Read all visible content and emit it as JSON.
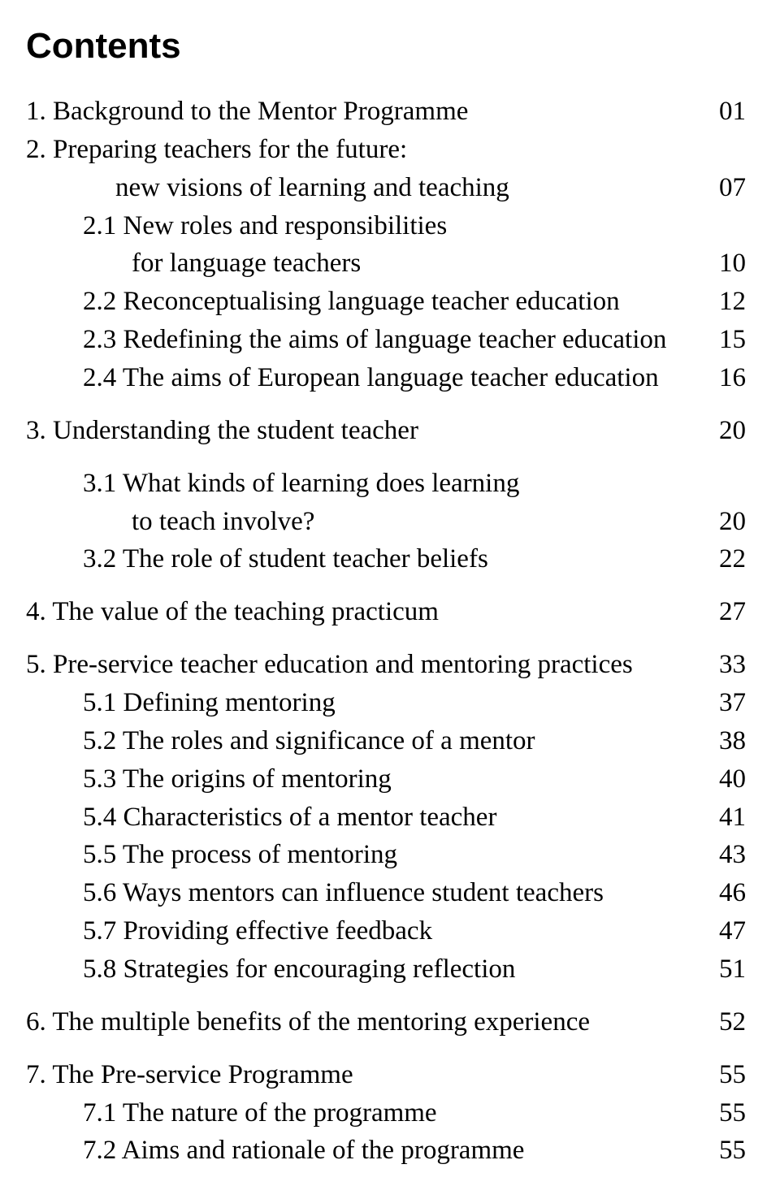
{
  "title": "Contents",
  "entries": [
    {
      "label": "1. Background to the Mentor Programme",
      "page": "01",
      "indent": 0,
      "gap": false
    },
    {
      "label": "2. Preparing teachers for the future:",
      "page": "",
      "indent": 0,
      "gap": false
    },
    {
      "label": "new visions of learning and teaching",
      "page": "07",
      "indent": "cont",
      "gap": false
    },
    {
      "label": "2.1 New roles and responsibilities",
      "page": "",
      "indent": 1,
      "gap": false
    },
    {
      "label": "for language teachers",
      "page": "10",
      "indent": 2,
      "gap": false
    },
    {
      "label": "2.2 Reconceptualising language teacher education",
      "page": "12",
      "indent": 1,
      "gap": false
    },
    {
      "label": "2.3 Redefining the aims of language teacher education",
      "page": "15",
      "indent": 1,
      "gap": false
    },
    {
      "label": "2.4 The aims of European language teacher education",
      "page": "16",
      "indent": 1,
      "gap": false
    },
    {
      "label": "3. Understanding the student teacher",
      "page": "20",
      "indent": 0,
      "gap": true
    },
    {
      "label": "3.1 What kinds of learning does learning",
      "page": "",
      "indent": 1,
      "gap": true
    },
    {
      "label": "to teach involve?",
      "page": "20",
      "indent": 2,
      "gap": false
    },
    {
      "label": "3.2 The role of student teacher beliefs",
      "page": "22",
      "indent": 1,
      "gap": false
    },
    {
      "label": "4. The value of the teaching practicum",
      "page": "27",
      "indent": 0,
      "gap": true
    },
    {
      "label": "5. Pre-service teacher education and mentoring practices",
      "page": "33",
      "indent": 0,
      "gap": true
    },
    {
      "label": "5.1 Defining mentoring",
      "page": "37",
      "indent": 1,
      "gap": false
    },
    {
      "label": "5.2 The roles and significance of a mentor",
      "page": "38",
      "indent": 1,
      "gap": false
    },
    {
      "label": "5.3 The origins of mentoring",
      "page": "40",
      "indent": 1,
      "gap": false
    },
    {
      "label": "5.4 Characteristics of a mentor teacher",
      "page": "41",
      "indent": 1,
      "gap": false
    },
    {
      "label": "5.5 The process of mentoring",
      "page": "43",
      "indent": 1,
      "gap": false
    },
    {
      "label": "5.6 Ways mentors can influence student teachers",
      "page": "46",
      "indent": 1,
      "gap": false
    },
    {
      "label": "5.7 Providing effective feedback",
      "page": "47",
      "indent": 1,
      "gap": false
    },
    {
      "label": "5.8 Strategies for encouraging reflection",
      "page": "51",
      "indent": 1,
      "gap": false
    },
    {
      "label": "6. The multiple benefits of the mentoring experience",
      "page": "52",
      "indent": 0,
      "gap": true
    },
    {
      "label": "7. The Pre-service Programme",
      "page": "55",
      "indent": 0,
      "gap": true
    },
    {
      "label": "7.1 The nature of the programme",
      "page": "55",
      "indent": 1,
      "gap": false
    },
    {
      "label": "7.2 Aims and rationale of the programme",
      "page": "55",
      "indent": 1,
      "gap": false
    }
  ]
}
